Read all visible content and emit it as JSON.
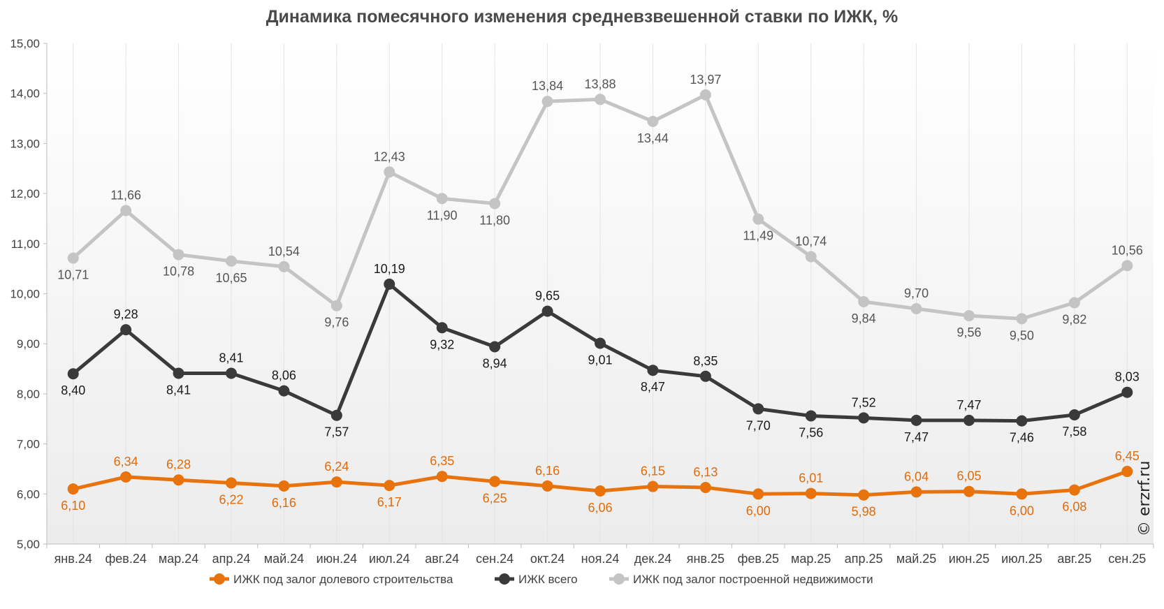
{
  "chart_data": {
    "type": "line",
    "title": "Динамика помесячного изменения средневзвешенной ставки по ИЖК, %",
    "categories": [
      "янв.24",
      "фев.24",
      "мар.24",
      "апр.24",
      "май.24",
      "июн.24",
      "июл.24",
      "авг.24",
      "сен.24",
      "окт.24",
      "ноя.24",
      "дек.24",
      "янв.25",
      "фев.25",
      "мар.25",
      "апр.25",
      "май.25",
      "июн.25",
      "июл.25",
      "авг.25",
      "сен.25"
    ],
    "ylim": [
      5,
      15
    ],
    "yticks": [
      "5,00",
      "6,00",
      "7,00",
      "8,00",
      "9,00",
      "10,00",
      "11,00",
      "12,00",
      "13,00",
      "14,00",
      "15,00"
    ],
    "grid": "vertical",
    "legend_position": "bottom",
    "series": [
      {
        "name": "ИЖК под залог долевого строительства",
        "color": "#e8720c",
        "values": [
          6.1,
          6.34,
          6.28,
          6.22,
          6.16,
          6.24,
          6.17,
          6.35,
          6.25,
          6.16,
          6.06,
          6.15,
          6.13,
          6.0,
          6.01,
          5.98,
          6.04,
          6.05,
          6.0,
          6.08,
          6.45
        ],
        "labels": [
          "6,10",
          "6,34",
          "6,28",
          "6,22",
          "6,16",
          "6,24",
          "6,17",
          "6,35",
          "6,25",
          "6,16",
          "6,06",
          "6,15",
          "6,13",
          "6,00",
          "6,01",
          "5,98",
          "6,04",
          "6,05",
          "6,00",
          "6,08",
          "6,45"
        ]
      },
      {
        "name": "ИЖК всего",
        "color": "#3a3a3a",
        "values": [
          8.4,
          9.28,
          8.41,
          8.41,
          8.06,
          7.57,
          10.19,
          9.32,
          8.94,
          9.65,
          9.01,
          8.47,
          8.35,
          7.7,
          7.56,
          7.52,
          7.47,
          7.47,
          7.46,
          7.58,
          8.03
        ],
        "labels": [
          "8,40",
          "9,28",
          "8,41",
          "8,41",
          "8,06",
          "7,57",
          "10,19",
          "9,32",
          "8,94",
          "9,65",
          "9,01",
          "8,47",
          "8,35",
          "7,70",
          "7,56",
          "7,52",
          "7,47",
          "7,47",
          "7,46",
          "7,58",
          "8,03"
        ]
      },
      {
        "name": "ИЖК под залог построенной недвижимости",
        "color": "#c4c4c4",
        "values": [
          10.71,
          11.66,
          10.78,
          10.65,
          10.54,
          9.76,
          12.43,
          11.9,
          11.8,
          13.84,
          13.88,
          13.44,
          13.97,
          11.49,
          10.74,
          9.84,
          9.7,
          9.56,
          9.5,
          9.82,
          10.56
        ],
        "labels": [
          "10,71",
          "11,66",
          "10,78",
          "10,65",
          "10,54",
          "9,76",
          "12,43",
          "11,90",
          "11,80",
          "13,84",
          "13,88",
          "13,44",
          "13,97",
          "11,49",
          "10,74",
          "9,84",
          "9,70",
          "9,56",
          "9,50",
          "9,82",
          "10,56"
        ]
      }
    ]
  },
  "watermark": "© erzrf.ru"
}
